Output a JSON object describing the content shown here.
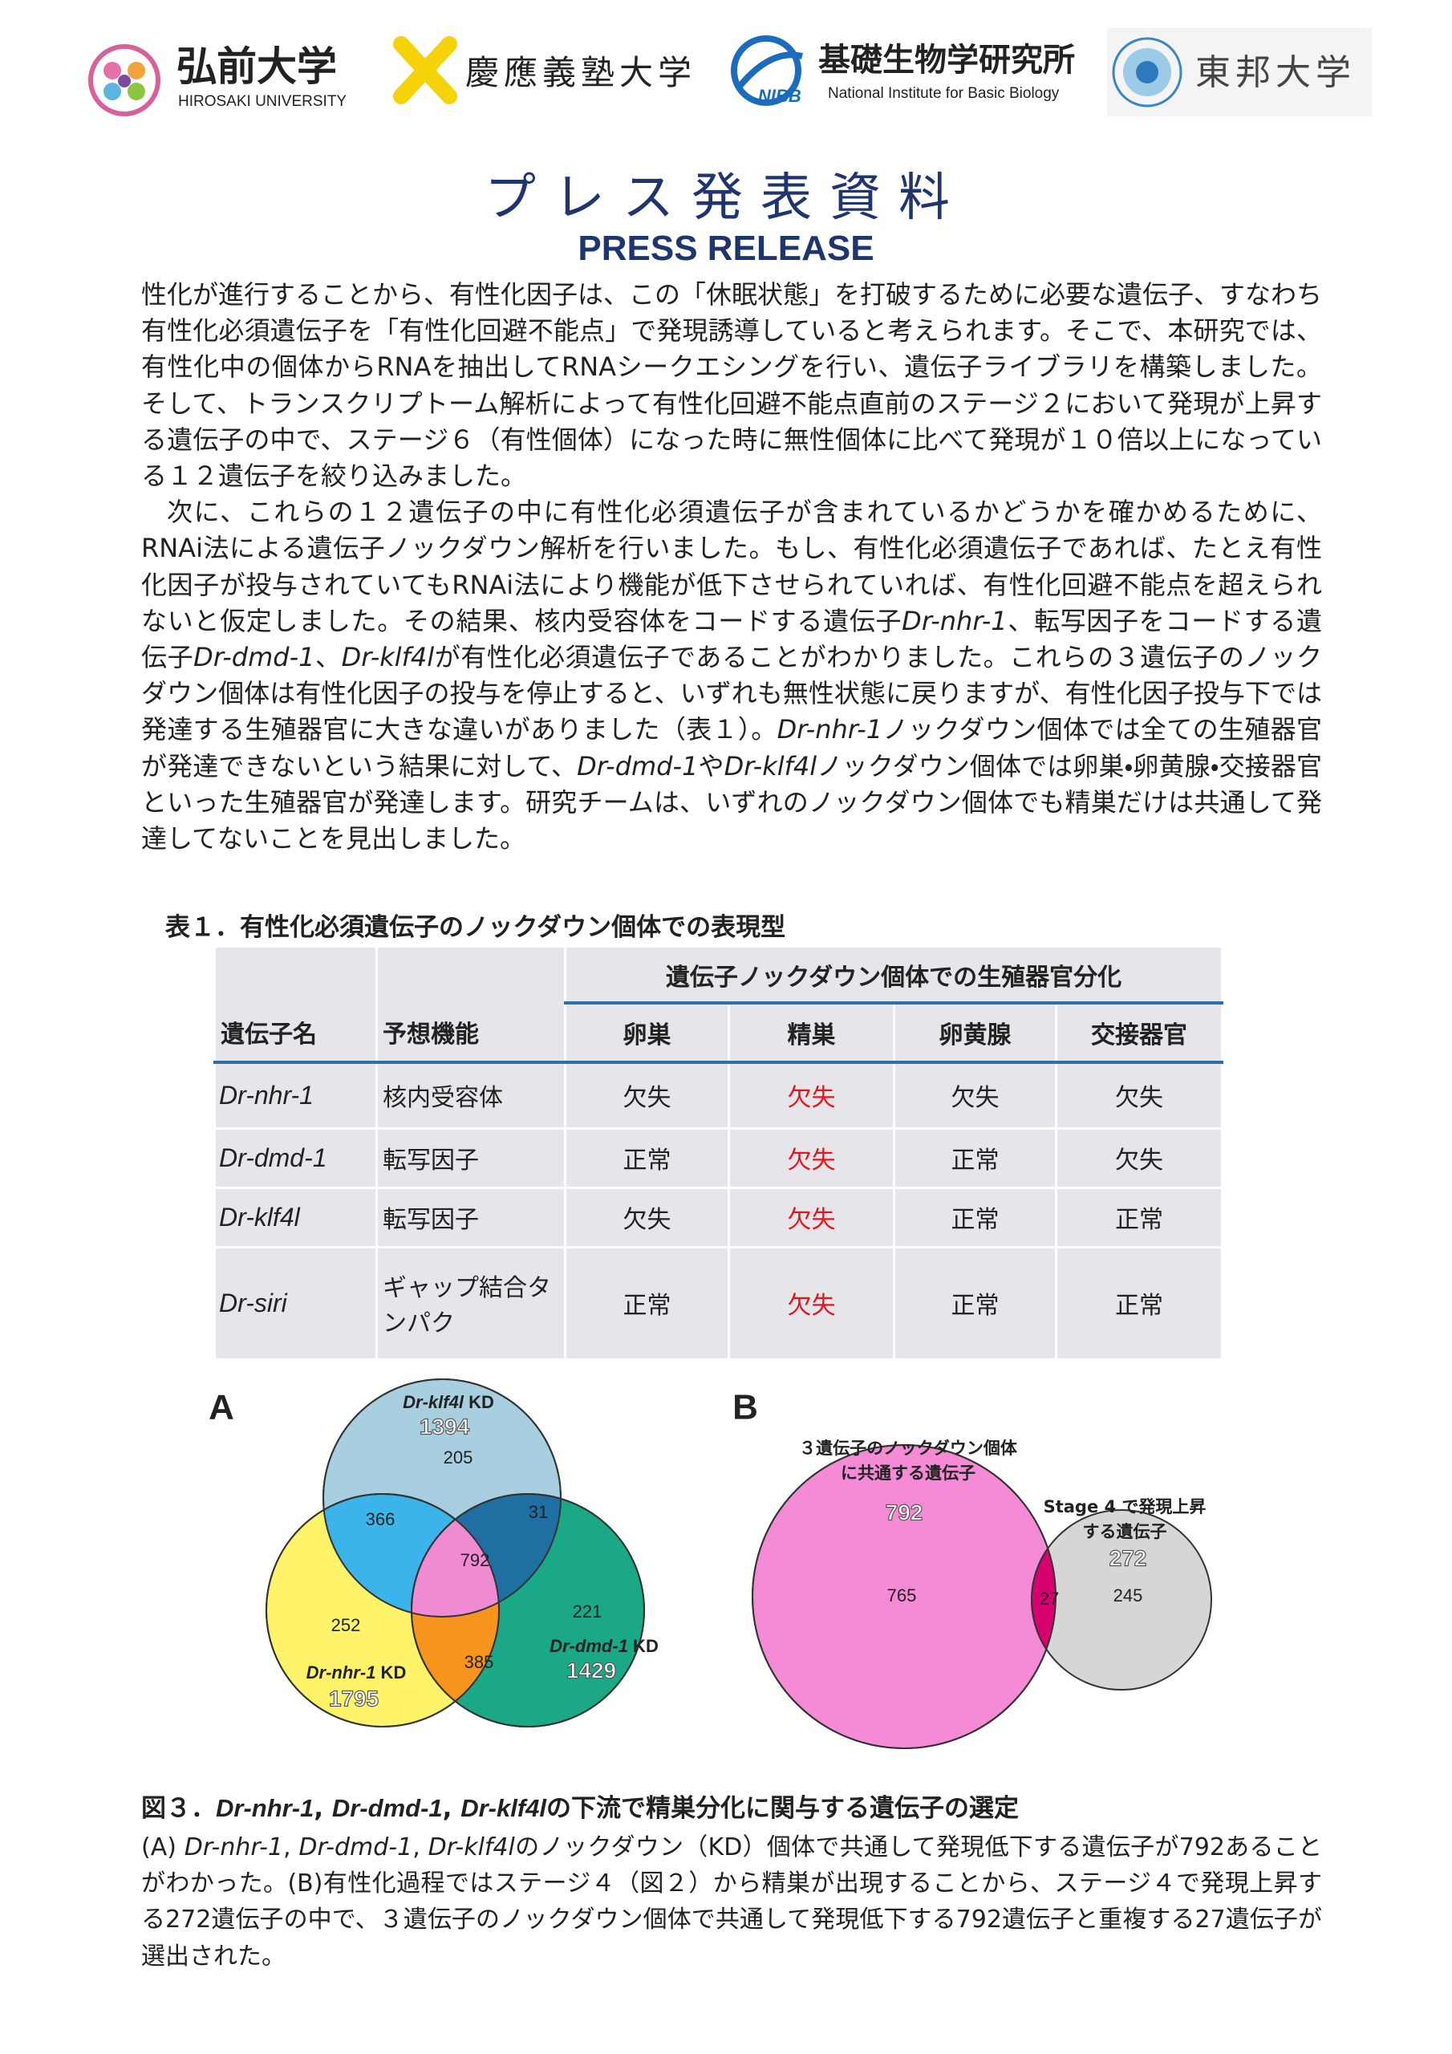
{
  "header": {
    "logos": [
      {
        "name": "弘前大学",
        "sub": "HIROSAKI UNIVERSITY"
      },
      {
        "name": "慶應義塾大学"
      },
      {
        "name": "基礎生物学研究所",
        "mark": "NIBB",
        "sub": "National Institute for Basic Biology"
      },
      {
        "name": "東邦大学"
      }
    ],
    "title": "プレス発表資料",
    "subtitle": "PRESS RELEASE"
  },
  "body": {
    "paragraphs": [
      [
        "性化が進行することから、有性化因子は、この「休眠状態」を打破するために必要な遺伝子、すなわち有性化必須遺伝子を「有性化回避不能点」で発現誘導していると考えられます。そこで、本研究では、有性化中の個体からRNAを抽出してRNAシークエシングを行い、遺伝子ライブラリを構築しました。そして、トランスクリプトーム解析によって有性化回避不能点直前のステージ２において発現が上昇する遺伝子の中で、ステージ６（有性個体）になった時に無性個体に比べて発現が１０倍以上になっている１２遺伝子を絞り込みました。"
      ],
      [
        "次に、これらの１２遺伝子の中に有性化必須遺伝子が含まれているかどうかを確かめるために、RNAi法による遺伝子ノックダウン解析を行いました。もし、有性化必須遺伝子であれば、たとえ有性化因子が投与されていてもRNAi法により機能が低下させられていれば、有性化回避不能点を超えられないと仮定しました。その結果、核内受容体をコードする遺伝子",
        {
          "italic": "Dr-nhr-1"
        },
        "、転写因子をコードする遺伝子",
        {
          "italic": "Dr-dmd-1"
        },
        "、",
        {
          "italic": "Dr-klf4l"
        },
        "が有性化必須遺伝子であることがわかりました。これらの３遺伝子のノックダウン個体は有性化因子の投与を停止すると、いずれも無性状態に戻りますが、有性化因子投与下では発達する生殖器官に大きな違いがありました（表１）。",
        {
          "italic": "Dr-nhr-1"
        },
        "ノックダウン個体では全ての生殖器官が発達できないという結果に対して、",
        {
          "italic": "Dr-dmd-1"
        },
        "や",
        {
          "italic": "Dr-klf4l"
        },
        "ノックダウン個体では卵巣・卵黄腺・交接器官といった生殖器官が発達します。研究チームは、いずれのノックダウン個体でも精巣だけは共通して発達してないことを見出しました。"
      ]
    ]
  },
  "table": {
    "caption": "表１．有性化必須遺伝子のノックダウン個体での表現型",
    "group_header": "遺伝子ノックダウン個体での生殖器官分化",
    "columns": [
      "遺伝子名",
      "予想機能",
      "卵巣",
      "精巣",
      "卵黄腺",
      "交接器官"
    ],
    "rows": [
      [
        "Dr-nhr-1",
        "核内受容体",
        "欠失",
        "欠失",
        "欠失",
        "欠失"
      ],
      [
        "Dr-dmd-1",
        "転写因子",
        "正常",
        "欠失",
        "正常",
        "欠失"
      ],
      [
        "Dr-klf4l",
        "転写因子",
        "欠失",
        "欠失",
        "正常",
        "正常"
      ],
      [
        "Dr-siri",
        "ギャップ結合タンパク",
        "正常",
        "欠失",
        "正常",
        "正常"
      ]
    ],
    "highlight_column": 3,
    "highlight_color": "#e8141c"
  },
  "figure": {
    "venn_a": {
      "label": "A",
      "sets": [
        {
          "name": [
            {
              "italic": "Dr-klf4l"
            },
            " KD"
          ],
          "total": 1394
        },
        {
          "name": [
            {
              "italic": "Dr-dmd-1"
            },
            " KD"
          ],
          "total": 1429
        },
        {
          "name": [
            {
              "italic": "Dr-nhr-1"
            },
            " KD"
          ],
          "total": 1795
        }
      ],
      "regions": [
        205,
        366,
        31,
        792,
        252,
        221,
        385
      ]
    },
    "venn_b": {
      "label": "B",
      "sets": [
        {
          "name": [
            "３遺伝子のノックダウン個体",
            "に共通する遺伝子"
          ],
          "total": 792
        },
        {
          "name": [
            "Stage 4 で発現上昇",
            "する遺伝子"
          ],
          "total": 272
        }
      ],
      "regions": [
        765,
        27,
        245
      ]
    },
    "caption_title": [
      "図３．",
      {
        "italic": "Dr-nhr-1"
      },
      ", ",
      {
        "italic": "Dr-dmd-1"
      },
      ", ",
      {
        "italic": "Dr-klf4l"
      },
      "の下流で精巣分化に関与する遺伝子の選定"
    ],
    "caption_text": [
      "(A) ",
      {
        "italic": "Dr-nhr-1"
      },
      ", ",
      {
        "italic": "Dr-dmd-1"
      },
      ", ",
      {
        "italic": "Dr-klf4l"
      },
      "のノックダウン（KD）個体で共通して発現低下する遺伝子が792あることがわかった。(B)有性化過程ではステージ４（図２）から精巣が出現することから、ステージ４で発現上昇する272遺伝子の中で、３遺伝子のノックダウン個体で共通して発現低下する792遺伝子と重複する27遺伝子が選出された。"
    ]
  }
}
